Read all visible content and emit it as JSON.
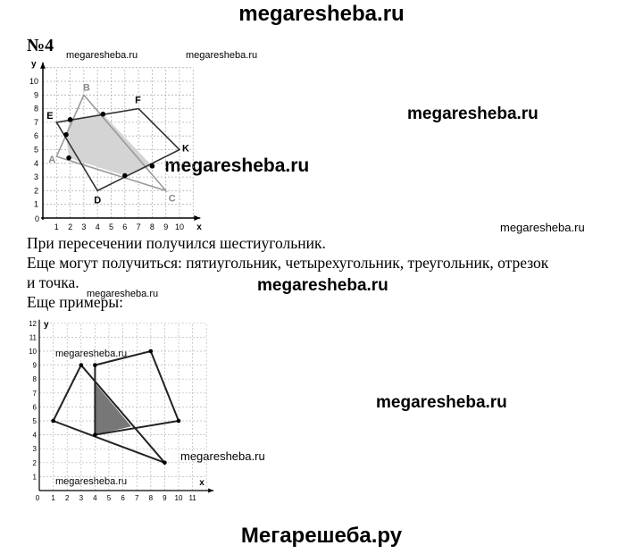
{
  "watermarks": {
    "header": "megaresheba.ru",
    "footer": "Мегарешеба.ру",
    "items": [
      "megaresheba.ru",
      "megaresheba.ru",
      "megaresheba.ru",
      "megaresheba.ru",
      "megaresheba.ru",
      "megaresheba.ru",
      "megaresheba.ru",
      "megaresheba.ru",
      "megaresheba.ru",
      "megaresheba.ru",
      "megaresheba.ru"
    ]
  },
  "task": {
    "number": "№4",
    "line1": "При пересечении получился шестиугольник.",
    "line2": "Еще могут получиться: пятиугольник, четырехугольник, треугольник, отрезок",
    "line3": "и точка.",
    "line4": "Еще примеры:"
  },
  "figure1": {
    "x_axis_label": "x",
    "y_axis_label": "y",
    "x_ticks": [
      "1",
      "2",
      "3",
      "4",
      "5",
      "6",
      "7",
      "8",
      "9",
      "10"
    ],
    "y_ticks": [
      "1",
      "2",
      "3",
      "4",
      "5",
      "6",
      "7",
      "8",
      "9",
      "10"
    ],
    "origin_label": "0",
    "triangle_ABC": {
      "A": [
        1,
        4.5
      ],
      "B": [
        3,
        9
      ],
      "C": [
        9,
        2
      ]
    },
    "quadrilateral_EFKD": {
      "E": [
        1,
        7
      ],
      "F": [
        7,
        8
      ],
      "K": [
        10,
        5
      ],
      "D": [
        4,
        2
      ]
    },
    "intersection_points": [
      [
        1.7,
        6.1
      ],
      [
        2,
        7.2
      ],
      [
        4.4,
        7.6
      ],
      [
        8,
        3.8
      ],
      [
        6,
        3.1
      ],
      [
        1.9,
        4.4
      ]
    ],
    "labels": {
      "A": "A",
      "B": "B",
      "C": "C",
      "D": "D",
      "E": "E",
      "F": "F",
      "K": "K"
    },
    "colors": {
      "triangle": "#9a9a9a",
      "quad": "#333333",
      "fill": "#d4d4d4"
    }
  },
  "figure2": {
    "x_axis_label": "x",
    "y_axis_label": "y",
    "x_ticks": [
      "1",
      "2",
      "3",
      "4",
      "5",
      "6",
      "7",
      "8",
      "9",
      "10",
      "11"
    ],
    "y_ticks": [
      "1",
      "2",
      "3",
      "4",
      "5",
      "6",
      "7",
      "8",
      "9",
      "10",
      "11",
      "12"
    ],
    "origin_label": "0",
    "triangle": [
      [
        1,
        5
      ],
      [
        3,
        9
      ],
      [
        9,
        2
      ]
    ],
    "quadrilateral": [
      [
        4,
        9
      ],
      [
        8,
        10
      ],
      [
        10,
        5
      ],
      [
        4,
        4
      ]
    ],
    "shaded": [
      [
        4,
        7.7
      ],
      [
        6.6,
        4.6
      ],
      [
        4,
        4
      ]
    ],
    "colors": {
      "lines": "#222222",
      "fill": "#777777"
    }
  }
}
